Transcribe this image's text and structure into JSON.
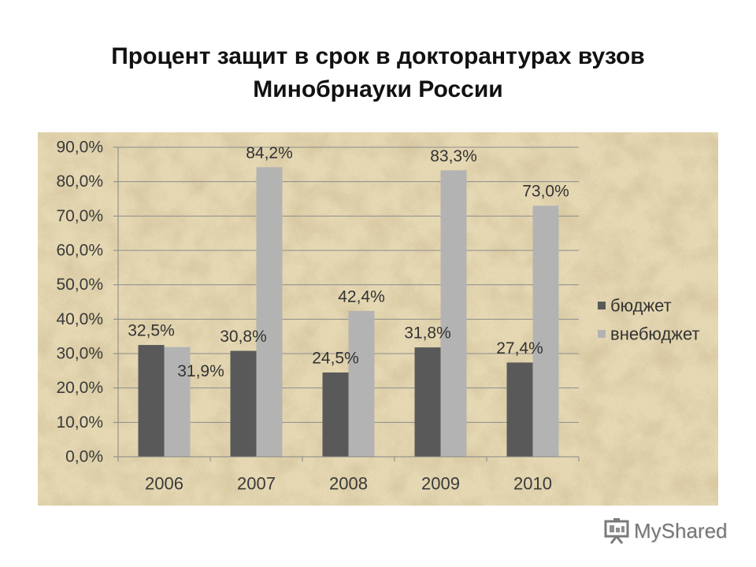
{
  "chart_data": {
    "type": "bar",
    "title": "Процент защит в срок в докторантурах вузов Минобрнауки России",
    "categories": [
      "2006",
      "2007",
      "2008",
      "2009",
      "2010"
    ],
    "series": [
      {
        "name": "бюджет",
        "values": [
          32.5,
          30.8,
          24.5,
          31.8,
          27.4
        ],
        "data_labels": [
          "32,5%",
          "30,8%",
          "24,5%",
          "31,8%",
          "27,4%"
        ],
        "color": "#595959"
      },
      {
        "name": "внебюджет",
        "values": [
          31.9,
          84.2,
          42.4,
          83.3,
          73.0
        ],
        "data_labels": [
          "31,9%",
          "84,2%",
          "42,4%",
          "83,3%",
          "73,0%"
        ],
        "color": "#b3b3b3"
      }
    ],
    "yticks": [
      {
        "value": 0,
        "label": "0,0%"
      },
      {
        "value": 10,
        "label": "10,0%"
      },
      {
        "value": 20,
        "label": "20,0%"
      },
      {
        "value": 30,
        "label": "30,0%"
      },
      {
        "value": 40,
        "label": "40,0%"
      },
      {
        "value": 50,
        "label": "50,0%"
      },
      {
        "value": 60,
        "label": "60,0%"
      },
      {
        "value": 70,
        "label": "70,0%"
      },
      {
        "value": 80,
        "label": "80,0%"
      },
      {
        "value": 90,
        "label": "90,0%"
      }
    ],
    "ylim": [
      0,
      90
    ],
    "grid": true,
    "legend_position": "right",
    "panel_color": "#e7dab5",
    "axis_color": "#868686",
    "grid_color": "#8c8c8c"
  },
  "watermark": {
    "text": "MyShared",
    "icon": "presentation-board-icon"
  }
}
